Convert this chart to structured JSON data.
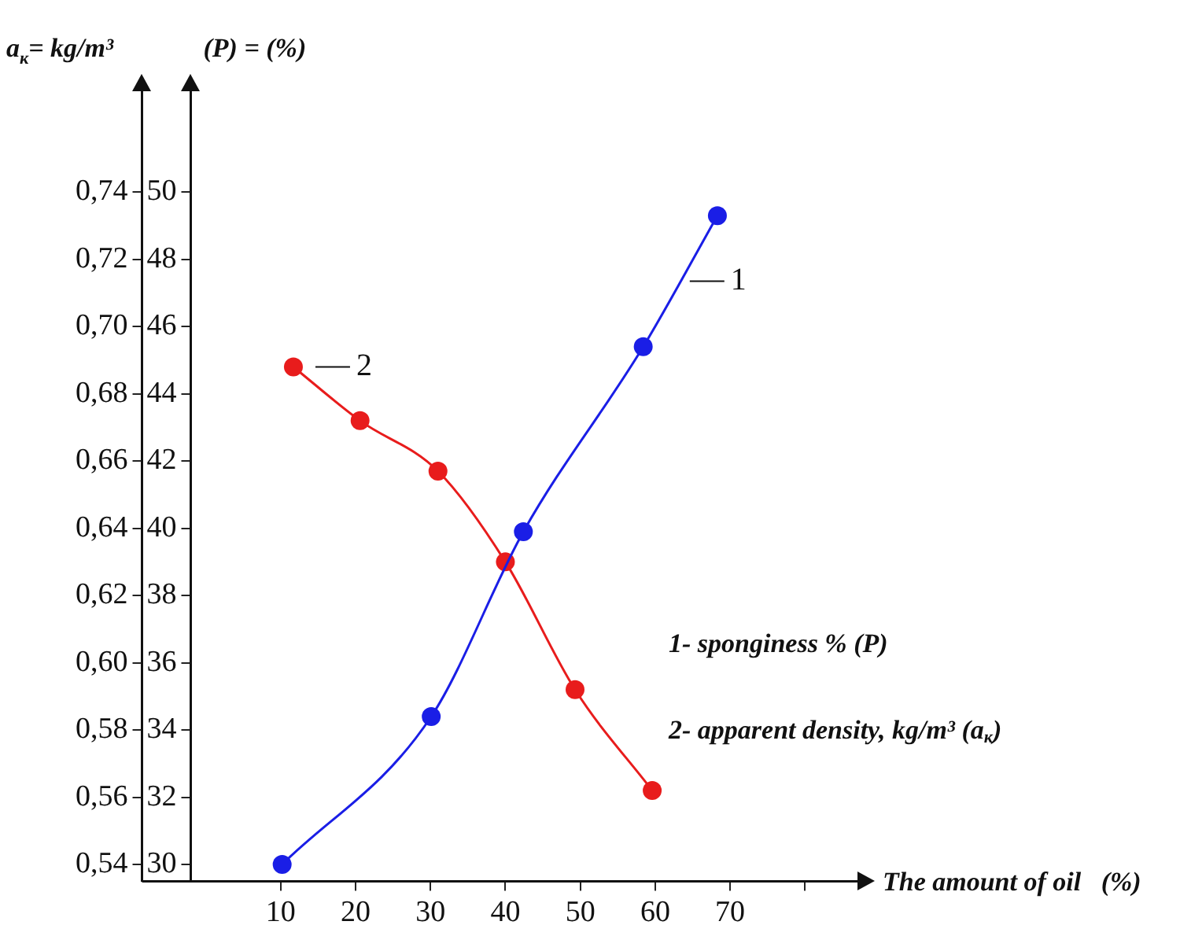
{
  "chart_data": {
    "type": "line",
    "xlabel": "The amount of oil   (%)",
    "ylabel": "a$_{к}$= kg/m³",
    "y2label": "(P) = (%)",
    "xlim": [
      -2,
      87
    ],
    "xticks": [
      10,
      20,
      30,
      40,
      50,
      60,
      70,
      {
        "value": 80,
        "label": null
      }
    ],
    "ylim": [
      0.535,
      0.77
    ],
    "yticks": [
      {
        "value": 0.54,
        "label": "0,54"
      },
      {
        "value": 0.56,
        "label": "0,56"
      },
      {
        "value": 0.58,
        "label": "0,58"
      },
      {
        "value": 0.6,
        "label": "0,60"
      },
      {
        "value": 0.62,
        "label": "0,62"
      },
      {
        "value": 0.64,
        "label": "0,64"
      },
      {
        "value": 0.66,
        "label": "0,66"
      },
      {
        "value": 0.68,
        "label": "0,68"
      },
      {
        "value": 0.7,
        "label": "0,70"
      },
      {
        "value": 0.72,
        "label": "0,72"
      },
      {
        "value": 0.74,
        "label": "0,74"
      }
    ],
    "y2lim": [
      29.5,
      53
    ],
    "y2ticks": [
      30,
      32,
      34,
      36,
      38,
      40,
      42,
      44,
      46,
      48,
      50
    ],
    "series": [
      {
        "name": "1",
        "color": "#1a1ee6",
        "axis": "y2",
        "x": [
          10.2,
          30.1,
          42.4,
          58.4,
          68.3
        ],
        "values": [
          30.0,
          34.4,
          39.9,
          45.4,
          49.3
        ]
      },
      {
        "name": "2",
        "color": "#e81c1c",
        "axis": "y",
        "x": [
          11.7,
          20.6,
          31,
          40,
          49.3,
          59.6
        ],
        "values": [
          0.688,
          0.672,
          0.657,
          0.63,
          0.592,
          0.562
        ]
      }
    ],
    "annotations": [
      "1- sponginess % (P)",
      "2- apparent density, kg/m³ (a$_{к}$)"
    ],
    "marker": "circle",
    "line_style": "solid",
    "grid": false,
    "legend": false
  }
}
